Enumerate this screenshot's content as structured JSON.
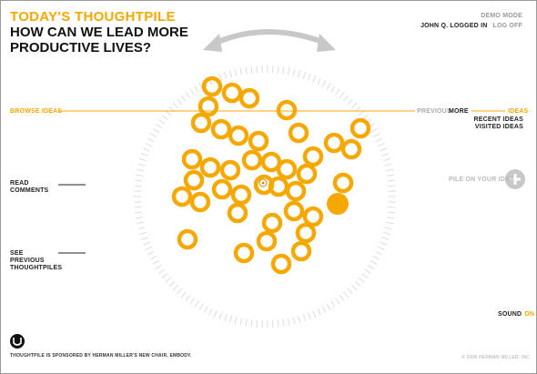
{
  "header": {
    "title": "TODAY'S THOUGHTPILE",
    "question": "HOW CAN WE LEAD MORE PRODUCTIVE LIVES?"
  },
  "account": {
    "mode": "DEMO MODE",
    "logged_in": "JOHN Q. LOGGED IN",
    "log_off": "LOG OFF"
  },
  "left_nav": {
    "browse": "BROWSE IDEAS",
    "read_comments": "READ COMMENTS",
    "see_previous": "SEE PREVIOUS THOUGHTPILES"
  },
  "right_nav": {
    "previous": "PREVIOUS",
    "more": "MORE",
    "ideas": "IDEAS",
    "recent_ideas": "RECENT IDEAS",
    "visited_ideas": "VISITED IDEAS",
    "pile_on": "PILE ON YOUR IDEA"
  },
  "footer": {
    "sound_label": "SOUND",
    "sound_state": "ON",
    "sponsor": "THOUGHTPILE IS SPONSORED BY HERMAN MILLER'S NEW CHAIR, EMBODY.",
    "copyright": "© 2008 Herman Miller, Inc."
  },
  "colors": {
    "accent": "#F5A800",
    "text": "#1a1a1a",
    "muted": "#aaaaaa",
    "dial": "#dddddd"
  },
  "icons": {
    "rotate": "double-arrow-curve-icon",
    "add": "plus-circle-icon",
    "logo": "herman-miller-logo-icon",
    "idea": "ring-icon"
  }
}
